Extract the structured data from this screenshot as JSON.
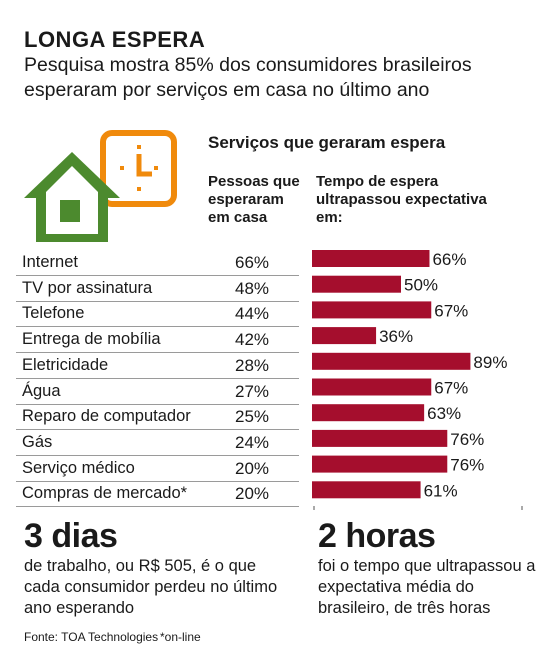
{
  "header": {
    "title": "LONGA ESPERA",
    "subtitle_line1": "Pesquisa mostra 85% dos consumidores brasileiros",
    "subtitle_line2": "esperaram por serviços em casa no último ano"
  },
  "section_title": "Serviços que geraram espera",
  "column_headers": {
    "waited": "Pessoas que esperaram em casa",
    "exceeded": "Tempo de espera ultrapassou expectativa em:"
  },
  "icons": [
    "house-icon",
    "clock-icon"
  ],
  "colors": {
    "bar": "#a50e2d",
    "house": "#4c8a2e",
    "clock": "#f08a0c",
    "text": "#1a1a1a"
  },
  "chart_data": {
    "type": "bar",
    "orientation": "horizontal",
    "categories": [
      "Internet",
      "TV por assinatura",
      "Telefone",
      "Entrega de mobília",
      "Eletricidade",
      "Água",
      "Reparo de computador",
      "Gás",
      "Serviço médico",
      "Compras de mercado*"
    ],
    "series": [
      {
        "name": "Pessoas que esperaram em casa",
        "values": [
          66,
          48,
          44,
          42,
          28,
          27,
          25,
          24,
          20,
          20
        ],
        "labels": [
          "66%",
          "48%",
          "44%",
          "42%",
          "28%",
          "27%",
          "25%",
          "24%",
          "20%",
          "20%"
        ]
      },
      {
        "name": "Tempo de espera ultrapassou expectativa em:",
        "values": [
          66,
          50,
          67,
          36,
          89,
          67,
          63,
          76,
          76,
          61
        ],
        "labels": [
          "66%",
          "50%",
          "67%",
          "36%",
          "89%",
          "67%",
          "63%",
          "76%",
          "76%",
          "61%"
        ]
      }
    ],
    "xlim": [
      0,
      100
    ],
    "grid": false
  },
  "highlights": {
    "days_big": "3 dias",
    "days_text": "de trabalho, ou R$ 505, é o que cada consumidor perdeu no último ano esperando",
    "hours_big": "2 horas",
    "hours_text": "foi o tempo que ultrapassou a expectativa média do brasileiro, de três horas"
  },
  "footer": {
    "source": "Fonte: TOA Technologies",
    "note": "*on-line"
  }
}
